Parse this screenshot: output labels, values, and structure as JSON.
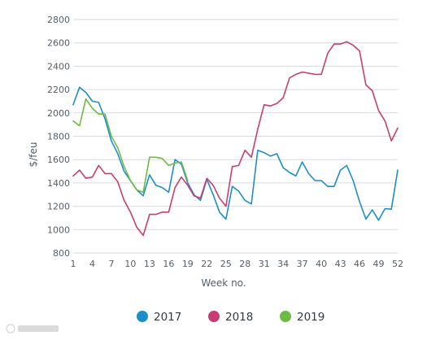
{
  "chart_data": {
    "type": "line",
    "title": "",
    "xlabel": "Week no.",
    "ylabel": "$/feu",
    "xlim": [
      1,
      52
    ],
    "ylim": [
      800,
      2800
    ],
    "xticks": [
      1,
      4,
      7,
      10,
      13,
      16,
      19,
      22,
      25,
      28,
      31,
      34,
      37,
      40,
      43,
      46,
      49,
      52
    ],
    "yticks": [
      800,
      1000,
      1200,
      1400,
      1600,
      1800,
      2000,
      2200,
      2400,
      2600,
      2800
    ],
    "grid": "horizontal",
    "legend_position": "bottom",
    "series": [
      {
        "name": "2017",
        "color": "#1f8ec8",
        "x": [
          1,
          2,
          3,
          4,
          5,
          6,
          7,
          8,
          9,
          10,
          11,
          12,
          13,
          14,
          15,
          16,
          17,
          18,
          19,
          20,
          21,
          22,
          23,
          24,
          25,
          26,
          27,
          28,
          29,
          30,
          31,
          32,
          33,
          34,
          35,
          36,
          37,
          38,
          39,
          40,
          41,
          42,
          43,
          44,
          45,
          46,
          47,
          48,
          49,
          50,
          51,
          52
        ],
        "y": [
          2070,
          2220,
          2175,
          2100,
          2090,
          1950,
          1760,
          1650,
          1500,
          1420,
          1340,
          1290,
          1470,
          1380,
          1360,
          1320,
          1600,
          1560,
          1400,
          1300,
          1250,
          1430,
          1300,
          1150,
          1090,
          1370,
          1330,
          1250,
          1220,
          1680,
          1660,
          1630,
          1650,
          1530,
          1490,
          1460,
          1580,
          1480,
          1420,
          1420,
          1370,
          1370,
          1510,
          1550,
          1420,
          1240,
          1090,
          1170,
          1080,
          1180,
          1175,
          1510
        ]
      },
      {
        "name": "2018",
        "color": "#c93d72",
        "x": [
          1,
          2,
          3,
          4,
          5,
          6,
          7,
          8,
          9,
          10,
          11,
          12,
          13,
          14,
          15,
          16,
          17,
          18,
          19,
          20,
          21,
          22,
          23,
          24,
          25,
          26,
          27,
          28,
          29,
          30,
          31,
          32,
          33,
          34,
          35,
          36,
          37,
          38,
          39,
          40,
          41,
          42,
          43,
          44,
          45,
          46,
          47,
          48,
          49,
          50,
          51,
          52
        ],
        "y": [
          1460,
          1510,
          1440,
          1450,
          1550,
          1480,
          1480,
          1410,
          1250,
          1150,
          1020,
          950,
          1130,
          1130,
          1150,
          1150,
          1360,
          1450,
          1380,
          1290,
          1270,
          1440,
          1380,
          1270,
          1200,
          1540,
          1550,
          1680,
          1620,
          1860,
          2070,
          2060,
          2080,
          2130,
          2300,
          2330,
          2350,
          2340,
          2330,
          2330,
          2510,
          2590,
          2590,
          2610,
          2580,
          2530,
          2240,
          2190,
          2020,
          1930,
          1760,
          1870
        ]
      },
      {
        "name": "2019",
        "color": "#6dbb45",
        "x": [
          1,
          2,
          3,
          4,
          5,
          6,
          7,
          8,
          9,
          10,
          11,
          12,
          13,
          14,
          15,
          16,
          17,
          18,
          19
        ],
        "y": [
          1930,
          1890,
          2120,
          2040,
          1990,
          1990,
          1800,
          1700,
          1540,
          1420,
          1340,
          1320,
          1620,
          1620,
          1610,
          1550,
          1570,
          1580,
          1420
        ]
      }
    ]
  }
}
